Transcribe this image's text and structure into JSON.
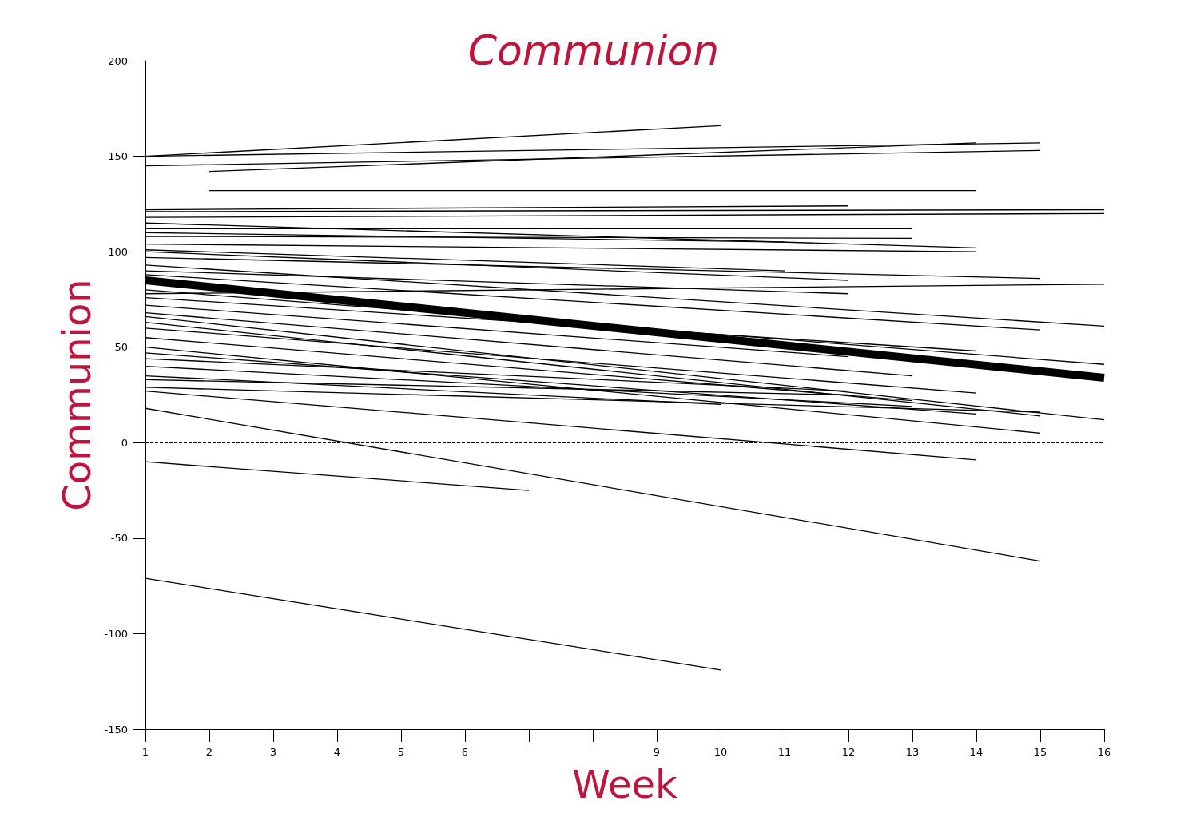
{
  "chart_data": {
    "type": "line",
    "title": "Communion",
    "xlabel": "Week",
    "ylabel": "Communion",
    "xlim": [
      1,
      16
    ],
    "xticks": [
      1,
      2,
      3,
      4,
      5,
      6,
      {
        "value": 7,
        "label": null
      },
      {
        "value": 8,
        "label": null
      },
      9,
      10,
      11,
      12,
      13,
      14,
      15,
      16
    ],
    "ylim": [
      -150,
      200
    ],
    "yticks": [
      -150,
      -100,
      -50,
      0,
      50,
      100,
      150,
      200
    ],
    "grid": false,
    "marker": "none",
    "line_style": "solid",
    "ref_lines": [
      {
        "axis": "y",
        "value": 0,
        "line_style": "dashed",
        "color": "#000000"
      }
    ],
    "series": [
      {
        "color": "#000000",
        "x": [
          1,
          10
        ],
        "values": [
          150,
          166
        ]
      },
      {
        "color": "#000000",
        "x": [
          1,
          15
        ],
        "values": [
          150,
          157
        ]
      },
      {
        "color": "#000000",
        "x": [
          1,
          15
        ],
        "values": [
          145,
          153
        ]
      },
      {
        "color": "#000000",
        "x": [
          2,
          14
        ],
        "values": [
          142,
          157
        ]
      },
      {
        "color": "#000000",
        "x": [
          2,
          14
        ],
        "values": [
          132,
          132
        ]
      },
      {
        "color": "#000000",
        "x": [
          1,
          12
        ],
        "values": [
          122,
          124
        ]
      },
      {
        "color": "#000000",
        "x": [
          1,
          16
        ],
        "values": [
          121,
          122
        ]
      },
      {
        "color": "#000000",
        "x": [
          1,
          16
        ],
        "values": [
          118,
          120
        ]
      },
      {
        "color": "#000000",
        "x": [
          1,
          14
        ],
        "values": [
          115,
          102
        ]
      },
      {
        "color": "#000000",
        "x": [
          1,
          13
        ],
        "values": [
          112,
          112
        ]
      },
      {
        "color": "#000000",
        "x": [
          1,
          11
        ],
        "values": [
          110,
          105
        ]
      },
      {
        "color": "#000000",
        "x": [
          1,
          13
        ],
        "values": [
          108,
          107
        ]
      },
      {
        "color": "#000000",
        "x": [
          1,
          14
        ],
        "values": [
          104,
          100
        ]
      },
      {
        "color": "#000000",
        "x": [
          1,
          11
        ],
        "values": [
          101,
          90
        ]
      },
      {
        "color": "#000000",
        "x": [
          1,
          12
        ],
        "values": [
          100,
          85
        ]
      },
      {
        "color": "#000000",
        "x": [
          1,
          15
        ],
        "values": [
          97,
          86
        ]
      },
      {
        "color": "#000000",
        "x": [
          1,
          16
        ],
        "values": [
          78,
          83
        ]
      },
      {
        "color": "#000000",
        "x": [
          1,
          12
        ],
        "values": [
          90,
          78
        ]
      },
      {
        "color": "#000000",
        "x": [
          1,
          16
        ],
        "values": [
          93,
          61
        ]
      },
      {
        "color": "#000000",
        "x": [
          1,
          15
        ],
        "values": [
          88,
          59
        ]
      },
      {
        "color": "#000000",
        "x": [
          1,
          16
        ],
        "values": [
          80,
          41
        ]
      },
      {
        "color": "#000000",
        "x": [
          1,
          14
        ],
        "values": [
          76,
          48
        ]
      },
      {
        "color": "#000000",
        "x": [
          1,
          12
        ],
        "values": [
          72,
          45
        ]
      },
      {
        "color": "#000000",
        "x": [
          1,
          13
        ],
        "values": [
          68,
          35
        ]
      },
      {
        "color": "#000000",
        "x": [
          1,
          16
        ],
        "values": [
          66,
          12
        ]
      },
      {
        "color": "#000000",
        "x": [
          1,
          15
        ],
        "values": [
          63,
          14
        ]
      },
      {
        "color": "#000000",
        "x": [
          1,
          14
        ],
        "values": [
          60,
          26
        ]
      },
      {
        "color": "#000000",
        "x": [
          1,
          13
        ],
        "values": [
          55,
          22
        ]
      },
      {
        "color": "#000000",
        "x": [
          1,
          15
        ],
        "values": [
          50,
          5
        ]
      },
      {
        "color": "#000000",
        "x": [
          1,
          14
        ],
        "values": [
          47,
          15
        ]
      },
      {
        "color": "#000000",
        "x": [
          1,
          12
        ],
        "values": [
          44,
          27
        ]
      },
      {
        "color": "#000000",
        "x": [
          1,
          13
        ],
        "values": [
          40,
          19
        ]
      },
      {
        "color": "#000000",
        "x": [
          1,
          10
        ],
        "values": [
          35,
          20
        ]
      },
      {
        "color": "#000000",
        "x": [
          1,
          12
        ],
        "values": [
          33,
          25
        ]
      },
      {
        "color": "#000000",
        "x": [
          1,
          15
        ],
        "values": [
          29,
          16
        ]
      },
      {
        "color": "#000000",
        "x": [
          1,
          14
        ],
        "values": [
          27,
          -9
        ]
      },
      {
        "color": "#000000",
        "x": [
          1,
          15
        ],
        "values": [
          18,
          -62
        ]
      },
      {
        "color": "#000000",
        "x": [
          1,
          7
        ],
        "values": [
          -10,
          -25
        ]
      },
      {
        "color": "#000000",
        "x": [
          1,
          10
        ],
        "values": [
          -71,
          -119
        ]
      },
      {
        "type": "line",
        "color": "#000000",
        "x": [
          1,
          16
        ],
        "values": [
          85,
          34
        ]
      }
    ]
  }
}
